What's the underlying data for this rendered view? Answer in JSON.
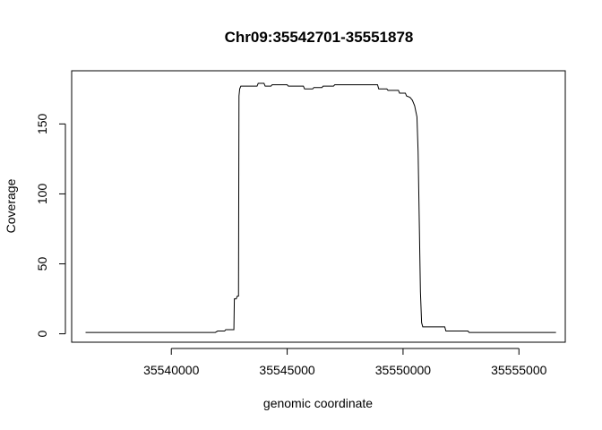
{
  "chart_data": {
    "type": "line",
    "title": "Chr09:35542701-35551878",
    "xlabel": "genomic coordinate",
    "ylabel": "Coverage",
    "xlim": [
      35535700,
      35557000
    ],
    "ylim": [
      -6,
      188
    ],
    "x_ticks": [
      35540000,
      35545000,
      35550000,
      35555000
    ],
    "y_ticks": [
      0,
      50,
      100,
      150
    ],
    "grid": false,
    "series": [
      {
        "color": "#000000",
        "points": [
          [
            35536300,
            1
          ],
          [
            35541900,
            1
          ],
          [
            35542000,
            2
          ],
          [
            35542300,
            2
          ],
          [
            35542350,
            3
          ],
          [
            35542700,
            3
          ],
          [
            35542720,
            25
          ],
          [
            35542800,
            25
          ],
          [
            35542850,
            27
          ],
          [
            35542900,
            27
          ],
          [
            35542920,
            170
          ],
          [
            35542950,
            175
          ],
          [
            35543000,
            177
          ],
          [
            35543700,
            177
          ],
          [
            35543750,
            179
          ],
          [
            35544000,
            179
          ],
          [
            35544050,
            177
          ],
          [
            35544300,
            177
          ],
          [
            35544350,
            178
          ],
          [
            35545000,
            178
          ],
          [
            35545050,
            177
          ],
          [
            35545700,
            177
          ],
          [
            35545750,
            175
          ],
          [
            35546100,
            175
          ],
          [
            35546150,
            176
          ],
          [
            35546500,
            176
          ],
          [
            35546550,
            177
          ],
          [
            35547000,
            177
          ],
          [
            35547050,
            178
          ],
          [
            35548900,
            178
          ],
          [
            35548950,
            175
          ],
          [
            35549300,
            175
          ],
          [
            35549350,
            174
          ],
          [
            35549800,
            174
          ],
          [
            35549850,
            172
          ],
          [
            35550100,
            172
          ],
          [
            35550150,
            170
          ],
          [
            35550300,
            169
          ],
          [
            35550400,
            167
          ],
          [
            35550500,
            163
          ],
          [
            35550600,
            155
          ],
          [
            35550650,
            130
          ],
          [
            35550700,
            80
          ],
          [
            35550750,
            30
          ],
          [
            35550800,
            8
          ],
          [
            35550850,
            5
          ],
          [
            35551800,
            5
          ],
          [
            35551850,
            2
          ],
          [
            35552800,
            2
          ],
          [
            35552850,
            1
          ],
          [
            35556600,
            1
          ]
        ]
      }
    ]
  }
}
